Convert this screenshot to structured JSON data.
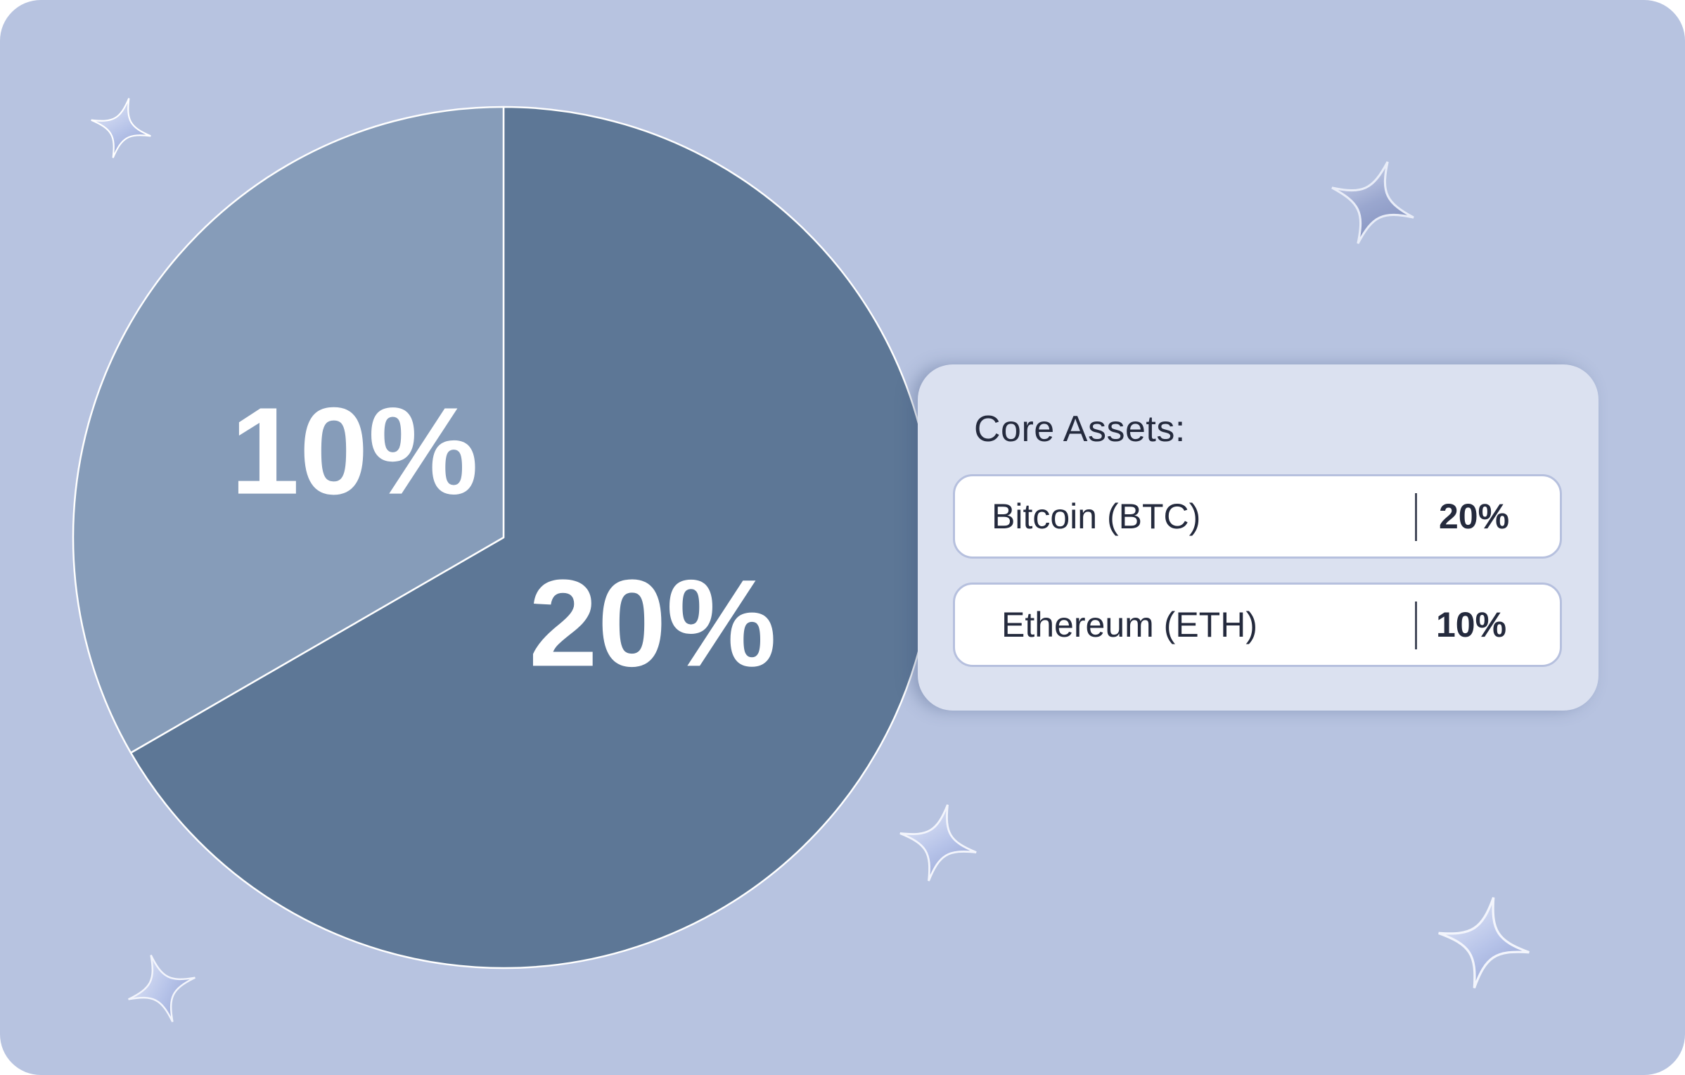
{
  "colors": {
    "background": "#b7c3e0",
    "slice_large": "#5d7796",
    "slice_small": "#869cb9",
    "panel": "#dbe1f0",
    "row": "#ffffff",
    "text": "#242a3d"
  },
  "chart_data": {
    "type": "pie",
    "title": "",
    "slices": [
      {
        "label": "20%",
        "value": 20,
        "color": "#5d7796"
      },
      {
        "label": "10%",
        "value": 10,
        "color": "#869cb9"
      }
    ]
  },
  "legend_panel": {
    "title": "Core Assets:",
    "items": [
      {
        "name": "Bitcoin (BTC)",
        "percent": "20%"
      },
      {
        "name": "Ethereum (ETH)",
        "percent": "10%"
      }
    ]
  },
  "decorations": [
    {
      "icon": "sparkle-star-icon"
    },
    {
      "icon": "sparkle-star-icon"
    },
    {
      "icon": "sparkle-star-icon"
    },
    {
      "icon": "sparkle-star-icon"
    },
    {
      "icon": "sparkle-star-icon"
    }
  ]
}
